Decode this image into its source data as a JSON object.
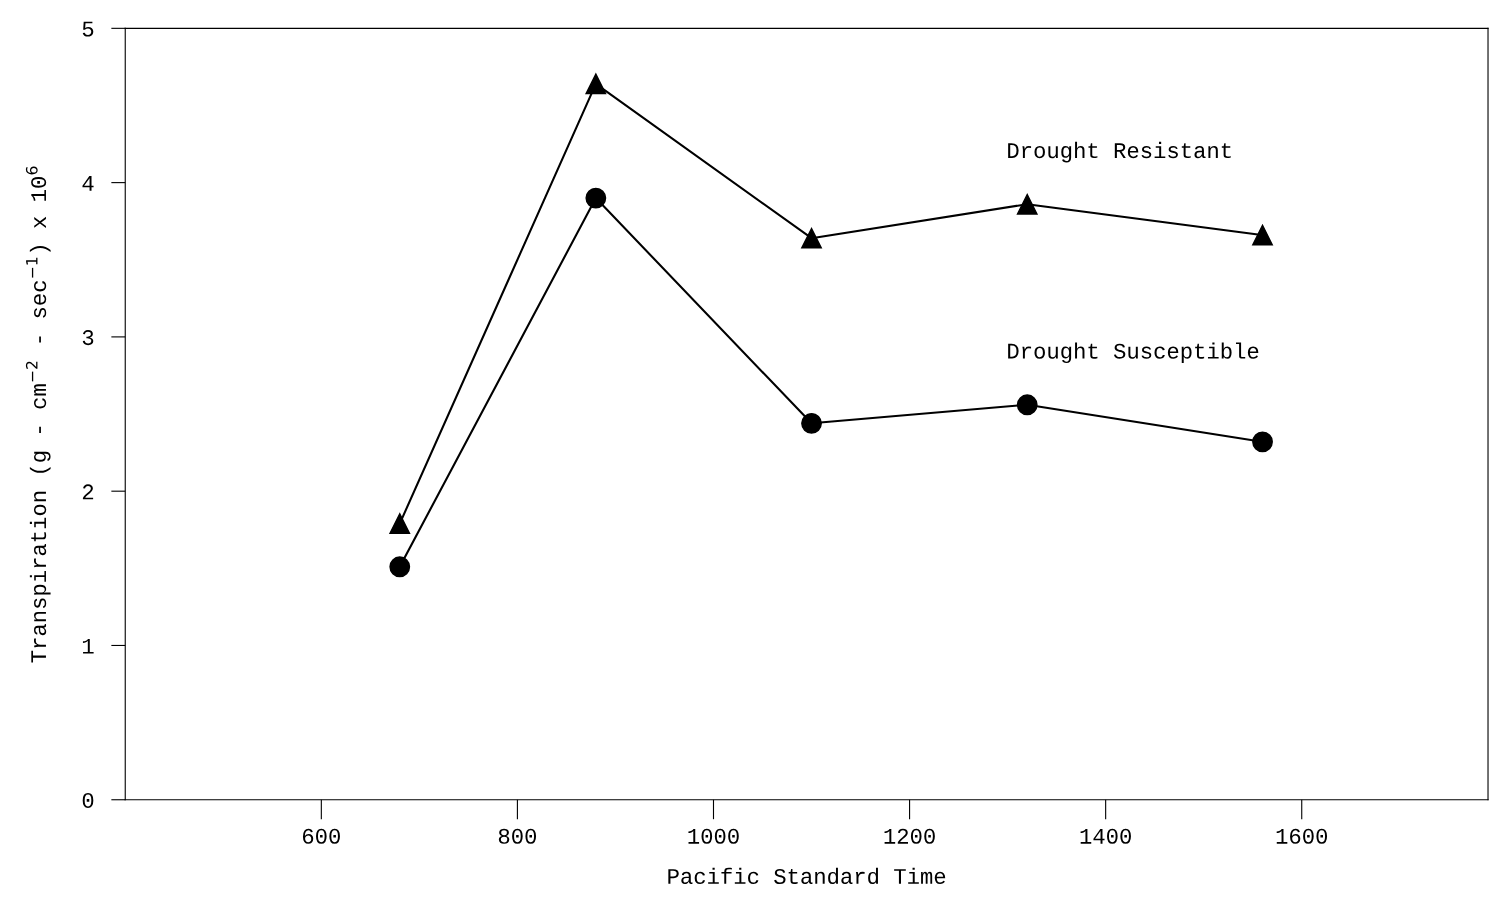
{
  "chart_data": {
    "type": "line",
    "xlabel": "Pacific Standard Time",
    "ylabel": "Transpiration (g - cm$^{−2}$ - sec$^{−1}$) x 10$^{6}$",
    "x": [
      680,
      880,
      1100,
      1320,
      1560
    ],
    "series": [
      {
        "name": "Drought Resistant",
        "color": "#000000",
        "marker": "triangle",
        "values": [
          1.79,
          4.64,
          3.64,
          3.86,
          3.66
        ]
      },
      {
        "name": "Drought Susceptible",
        "color": "#000000",
        "marker": "circle",
        "values": [
          1.51,
          3.9,
          2.44,
          2.56,
          2.32
        ]
      }
    ],
    "xlim": [
      400,
      1790
    ],
    "ylim": [
      0,
      5
    ],
    "xticks": [
      600,
      800,
      1000,
      1200,
      1400,
      1600
    ],
    "yticks": [
      0,
      1,
      2,
      3,
      4,
      5
    ],
    "grid": false,
    "legend": false,
    "line_style": "solid"
  }
}
